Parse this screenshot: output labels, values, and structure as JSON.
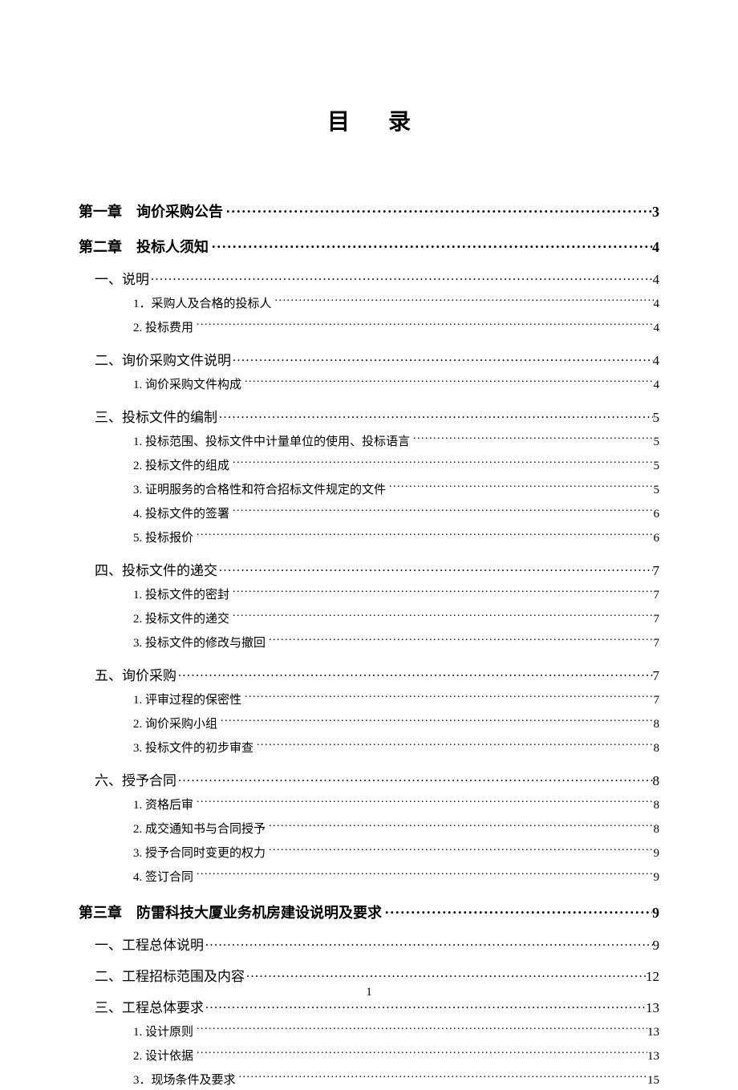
{
  "title": "目录",
  "page_number": "1",
  "toc": [
    {
      "level": 1,
      "label": "第一章　询价采购公告",
      "page": "3"
    },
    {
      "level": 1,
      "label": "第二章　投标人须知",
      "page": "4"
    },
    {
      "level": 2,
      "label": "一、说明",
      "page": "4"
    },
    {
      "level": 3,
      "label": "1．采购人及合格的投标人",
      "page": "4"
    },
    {
      "level": 3,
      "label": "2. 投标费用",
      "page": "4"
    },
    {
      "level": 2,
      "label": "二、询价采购文件说明",
      "page": "4"
    },
    {
      "level": 3,
      "label": "1. 询价采购文件构成",
      "page": "4"
    },
    {
      "level": 2,
      "label": "三、投标文件的编制",
      "page": "5"
    },
    {
      "level": 3,
      "label": "1. 投标范围、投标文件中计量单位的使用、投标语言",
      "page": "5"
    },
    {
      "level": 3,
      "label": "2. 投标文件的组成",
      "page": "5"
    },
    {
      "level": 3,
      "label": "3. 证明服务的合格性和符合招标文件规定的文件",
      "page": "5"
    },
    {
      "level": 3,
      "label": "4. 投标文件的签署",
      "page": "6"
    },
    {
      "level": 3,
      "label": "5. 投标报价",
      "page": "6"
    },
    {
      "level": 2,
      "label": "四、投标文件的递交",
      "page": "7"
    },
    {
      "level": 3,
      "label": "1. 投标文件的密封",
      "page": "7"
    },
    {
      "level": 3,
      "label": "2. 投标文件的递交",
      "page": "7"
    },
    {
      "level": 3,
      "label": "3. 投标文件的修改与撤回",
      "page": "7"
    },
    {
      "level": 2,
      "label": "五、询价采购",
      "page": "7"
    },
    {
      "level": 3,
      "label": "1. 评审过程的保密性",
      "page": "7"
    },
    {
      "level": 3,
      "label": "2. 询价采购小组",
      "page": "8"
    },
    {
      "level": 3,
      "label": "3. 投标文件的初步审查",
      "page": "8"
    },
    {
      "level": 2,
      "label": "六、授予合同",
      "page": "8"
    },
    {
      "level": 3,
      "label": "1. 资格后审",
      "page": "8"
    },
    {
      "level": 3,
      "label": "2. 成交通知书与合同授予",
      "page": "8"
    },
    {
      "level": 3,
      "label": "3. 授予合同时变更的权力",
      "page": "9"
    },
    {
      "level": 3,
      "label": "4. 签订合同",
      "page": "9"
    },
    {
      "level": 1,
      "label": "第三章　防雷科技大厦业务机房建设说明及要求",
      "page": "9"
    },
    {
      "level": 2,
      "label": "一、工程总体说明",
      "page": "9"
    },
    {
      "level": 2,
      "label": "二、工程招标范围及内容",
      "page": "12"
    },
    {
      "level": 2,
      "label": "三、工程总体要求",
      "page": "13"
    },
    {
      "level": 3,
      "label": "1. 设计原则",
      "page": "13"
    },
    {
      "level": 3,
      "label": "2. 设计依据",
      "page": "13"
    },
    {
      "level": 3,
      "label": "3．现场条件及要求",
      "page": "15"
    }
  ]
}
